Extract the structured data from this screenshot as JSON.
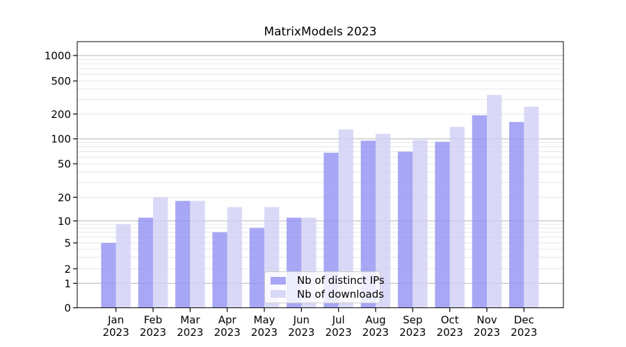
{
  "title": "MatrixModels 2023",
  "chart_data": {
    "type": "bar",
    "title": "MatrixModels 2023",
    "categories": [
      "Jan 2023",
      "Feb 2023",
      "Mar 2023",
      "Apr 2023",
      "May 2023",
      "Jun 2023",
      "Jul 2023",
      "Aug 2023",
      "Sep 2023",
      "Oct 2023",
      "Nov 2023",
      "Dec 2023"
    ],
    "series": [
      {
        "name": "Nb of distinct IPs",
        "color": "#9191f2",
        "values": [
          5,
          11,
          18,
          7,
          8,
          11,
          68,
          95,
          70,
          92,
          193,
          160
        ]
      },
      {
        "name": "Nb of downloads",
        "color": "#cfcff5",
        "values": [
          9,
          20,
          18,
          15,
          15,
          11,
          130,
          115,
          97,
          140,
          340,
          245
        ]
      }
    ],
    "bar_alpha": 0.8,
    "yscale": "symlog",
    "yticks": [
      0,
      1,
      2,
      5,
      10,
      20,
      50,
      100,
      200,
      500,
      1000
    ],
    "ylim": [
      0,
      1500
    ],
    "xlabel": "",
    "ylabel": "",
    "grid": true,
    "legend_position": "lower center",
    "colors": {
      "grid_major": "#b3b3b3",
      "grid_minor": "#e6e6e6",
      "axis": "#000000",
      "text": "#000000",
      "background": "#ffffff"
    }
  }
}
